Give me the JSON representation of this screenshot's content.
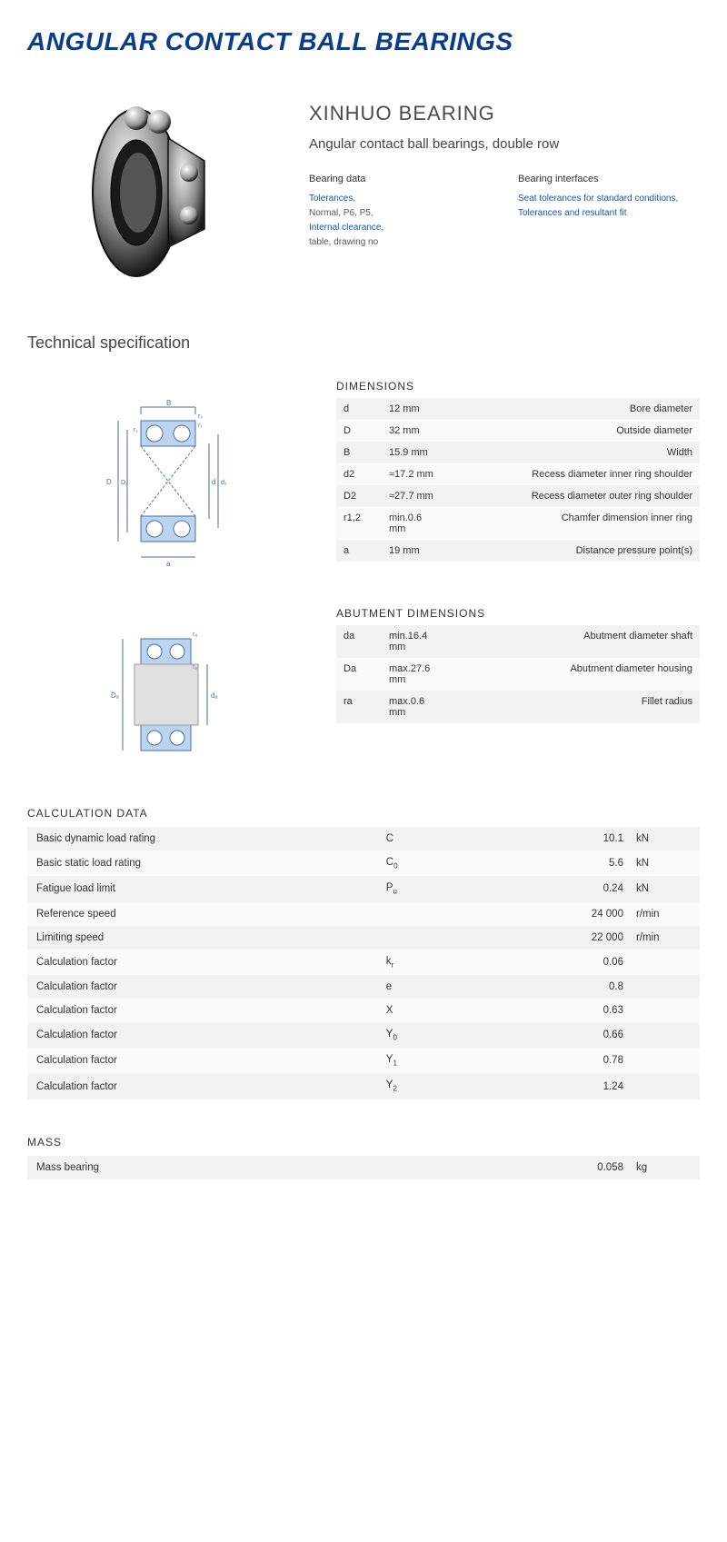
{
  "colors": {
    "title": "#0a3d8a",
    "link": "#1a4fb3",
    "text": "#333333",
    "row_odd": "#f2f2f2",
    "row_even": "#fafafa",
    "diagram_fill": "#bcd4ef",
    "diagram_stroke": "#4a6fa5"
  },
  "page_title": "ANGULAR CONTACT BALL BEARINGS",
  "brand": "XINHUO BEARING",
  "subtitle": "Angular contact ball bearings, double row",
  "bearing_data": {
    "heading": "Bearing data",
    "links": [
      "Tolerances,",
      "Internal clearance,"
    ],
    "plain": [
      "Normal, P6, P5,",
      "table, drawing no"
    ]
  },
  "bearing_interfaces": {
    "heading": "Bearing interfaces",
    "links": [
      "Seat tolerances for standard conditions,",
      "Tolerances and resultant fit"
    ]
  },
  "tech_spec_heading": "Technical specification",
  "dimensions": {
    "title": "DIMENSIONS",
    "rows": [
      {
        "sym": "d",
        "val": "12",
        "unit": "mm",
        "desc": "Bore diameter"
      },
      {
        "sym": "D",
        "val": "32",
        "unit": "mm",
        "desc": "Outside diameter"
      },
      {
        "sym": "B",
        "val": "15.9",
        "unit": "mm",
        "desc": "Width"
      },
      {
        "sym": "d2",
        "val": "≈17.2",
        "unit": "mm",
        "desc": "Recess diameter inner ring shoulder"
      },
      {
        "sym": "D2",
        "val": "≈27.7",
        "unit": "mm",
        "desc": "Recess diameter outer ring shoulder"
      },
      {
        "sym": "r1,2",
        "val": "min.0.6",
        "unit": "mm",
        "desc": "Chamfer dimension inner ring"
      },
      {
        "sym": "a",
        "val": "19",
        "unit": "mm",
        "desc": "Distance pressure point(s)"
      }
    ]
  },
  "abutment": {
    "title": "ABUTMENT DIMENSIONS",
    "rows": [
      {
        "sym": "da",
        "val": "min.16.4",
        "unit": "mm",
        "desc": "Abutment diameter shaft"
      },
      {
        "sym": "Da",
        "val": "max.27.6",
        "unit": "mm",
        "desc": "Abutment diameter housing"
      },
      {
        "sym": "ra",
        "val": "max.0.6",
        "unit": "mm",
        "desc": "Fillet radius"
      }
    ]
  },
  "calculation": {
    "title": "CALCULATION DATA",
    "rows": [
      {
        "label": "Basic dynamic load rating",
        "sym": "C",
        "val": "10.1",
        "unit": "kN"
      },
      {
        "label": "Basic static load rating",
        "sym": "C",
        "sub": "0",
        "val": "5.6",
        "unit": "kN"
      },
      {
        "label": "Fatigue load limit",
        "sym": "P",
        "sub": "u",
        "val": "0.24",
        "unit": "kN"
      },
      {
        "label": "Reference speed",
        "sym": "",
        "val": "24 000",
        "unit": "r/min"
      },
      {
        "label": "Limiting speed",
        "sym": "",
        "val": "22 000",
        "unit": "r/min"
      },
      {
        "label": "Calculation factor",
        "sym": "k",
        "sub": "r",
        "val": "0.06",
        "unit": ""
      },
      {
        "label": "Calculation factor",
        "sym": "e",
        "val": "0.8",
        "unit": ""
      },
      {
        "label": "Calculation factor",
        "sym": "X",
        "val": "0.63",
        "unit": ""
      },
      {
        "label": "Calculation factor",
        "sym": "Y",
        "sub": "0",
        "val": "0.66",
        "unit": ""
      },
      {
        "label": "Calculation factor",
        "sym": "Y",
        "sub": "1",
        "val": "0.78",
        "unit": ""
      },
      {
        "label": "Calculation factor",
        "sym": "Y",
        "sub": "2",
        "val": "1.24",
        "unit": ""
      }
    ]
  },
  "mass": {
    "title": "MASS",
    "rows": [
      {
        "label": "Mass bearing",
        "sym": "",
        "val": "0.058",
        "unit": "kg"
      }
    ]
  }
}
